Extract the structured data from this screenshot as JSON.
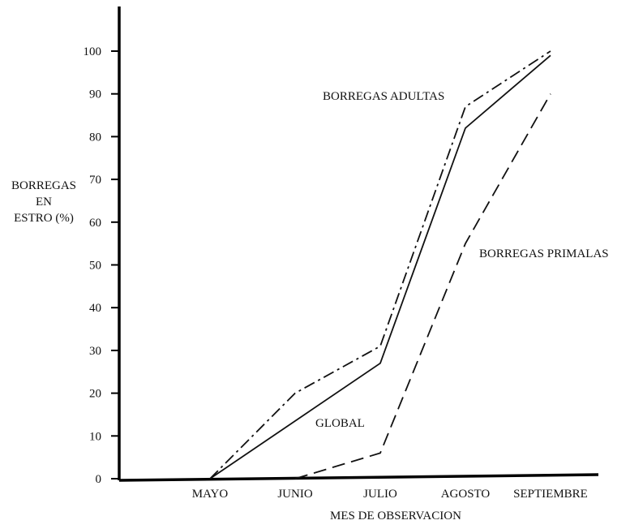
{
  "chart_data": {
    "type": "line",
    "categories": [
      "MAYO",
      "JUNIO",
      "JULIO",
      "AGOSTO",
      "SEPTIEMBRE"
    ],
    "xlabel": "MES DE OBSERVACION",
    "ylabel_lines": [
      "BORREGAS",
      "EN",
      "ESTRO (%)"
    ],
    "ylim": [
      0,
      100
    ],
    "yticks": [
      "0",
      "10",
      "20",
      "30",
      "40",
      "50",
      "60",
      "70",
      "80",
      "90",
      "100"
    ],
    "grid": false,
    "series": [
      {
        "name": "GLOBAL",
        "style": "solid",
        "points": [
          [
            0,
            0
          ],
          [
            2,
            27
          ],
          [
            3,
            82
          ],
          [
            4,
            99
          ]
        ]
      },
      {
        "name": "BORREGAS ADULTAS",
        "style": "dash-dot",
        "points": [
          [
            0,
            0
          ],
          [
            1,
            20
          ],
          [
            2,
            31
          ],
          [
            3,
            87
          ],
          [
            4,
            100
          ]
        ]
      },
      {
        "name": "BORREGAS PRIMALAS",
        "style": "dashed",
        "points": [
          [
            1,
            0
          ],
          [
            2,
            6
          ],
          [
            3,
            55
          ],
          [
            4,
            90
          ]
        ]
      }
    ]
  }
}
